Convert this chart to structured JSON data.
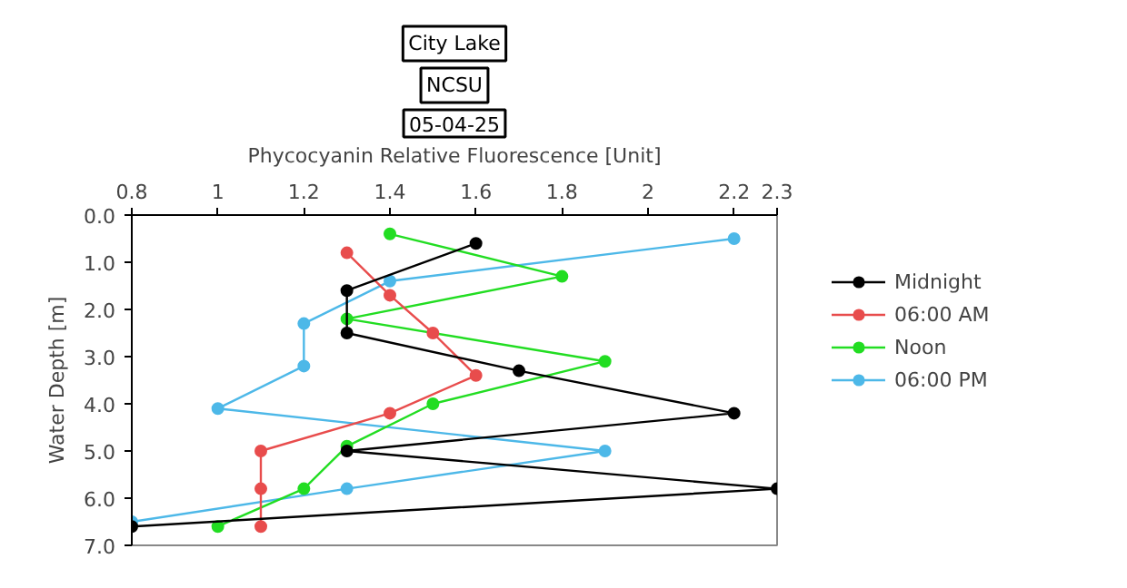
{
  "chart_data": {
    "type": "line",
    "title": "City Lake",
    "subtitle": "NCSU",
    "annotations": [
      "05-04-25"
    ],
    "xlabel": "Phycocyanin Relative Fluorescence [Unit]",
    "ylabel": "Water Depth [m]",
    "xlim": [
      0.8,
      2.3
    ],
    "xticks": [
      0.8,
      1,
      1.2,
      1.4,
      1.6,
      1.8,
      2,
      2.2,
      2.3
    ],
    "ylim": [
      7,
      0
    ],
    "yticks": [
      {
        "value": 0,
        "label": "0.0"
      },
      {
        "value": 1,
        "label": "1.0"
      },
      {
        "value": 2,
        "label": "2.0"
      },
      {
        "value": 3,
        "label": "3.0"
      },
      {
        "value": 4,
        "label": "4.0"
      },
      {
        "value": 5,
        "label": "5.0"
      },
      {
        "value": 6,
        "label": "6.0"
      },
      {
        "value": 7,
        "label": "7.0"
      }
    ],
    "grid": false,
    "legend": "top right",
    "marker": "circle",
    "line_style": "solid",
    "series": [
      {
        "name": "Midnight",
        "color": "#000000",
        "x": [
          1.6,
          1.3,
          1.3,
          1.7,
          2.2,
          1.3,
          2.3,
          0.8
        ],
        "values": [
          0.6,
          1.6,
          2.5,
          3.3,
          4.2,
          5.0,
          5.8,
          6.6
        ]
      },
      {
        "name": "06:00 AM",
        "color": "#e84c4c",
        "x": [
          1.3,
          1.4,
          1.5,
          1.6,
          1.4,
          1.1,
          1.1,
          1.1
        ],
        "values": [
          0.8,
          1.7,
          2.5,
          3.4,
          4.2,
          5.0,
          5.8,
          6.6
        ]
      },
      {
        "name": "Noon",
        "color": "#22dd22",
        "x": [
          1.4,
          1.8,
          1.3,
          1.9,
          1.5,
          1.3,
          1.2,
          1.0
        ],
        "values": [
          0.4,
          1.3,
          2.2,
          3.1,
          4.0,
          4.9,
          5.8,
          6.6
        ]
      },
      {
        "name": "06:00 PM",
        "color": "#4db8e8",
        "x": [
          2.2,
          1.4,
          1.2,
          1.2,
          1.0,
          1.9,
          1.3,
          0.8
        ],
        "values": [
          0.5,
          1.4,
          2.3,
          3.2,
          4.1,
          5.0,
          5.8,
          6.5
        ]
      }
    ]
  }
}
